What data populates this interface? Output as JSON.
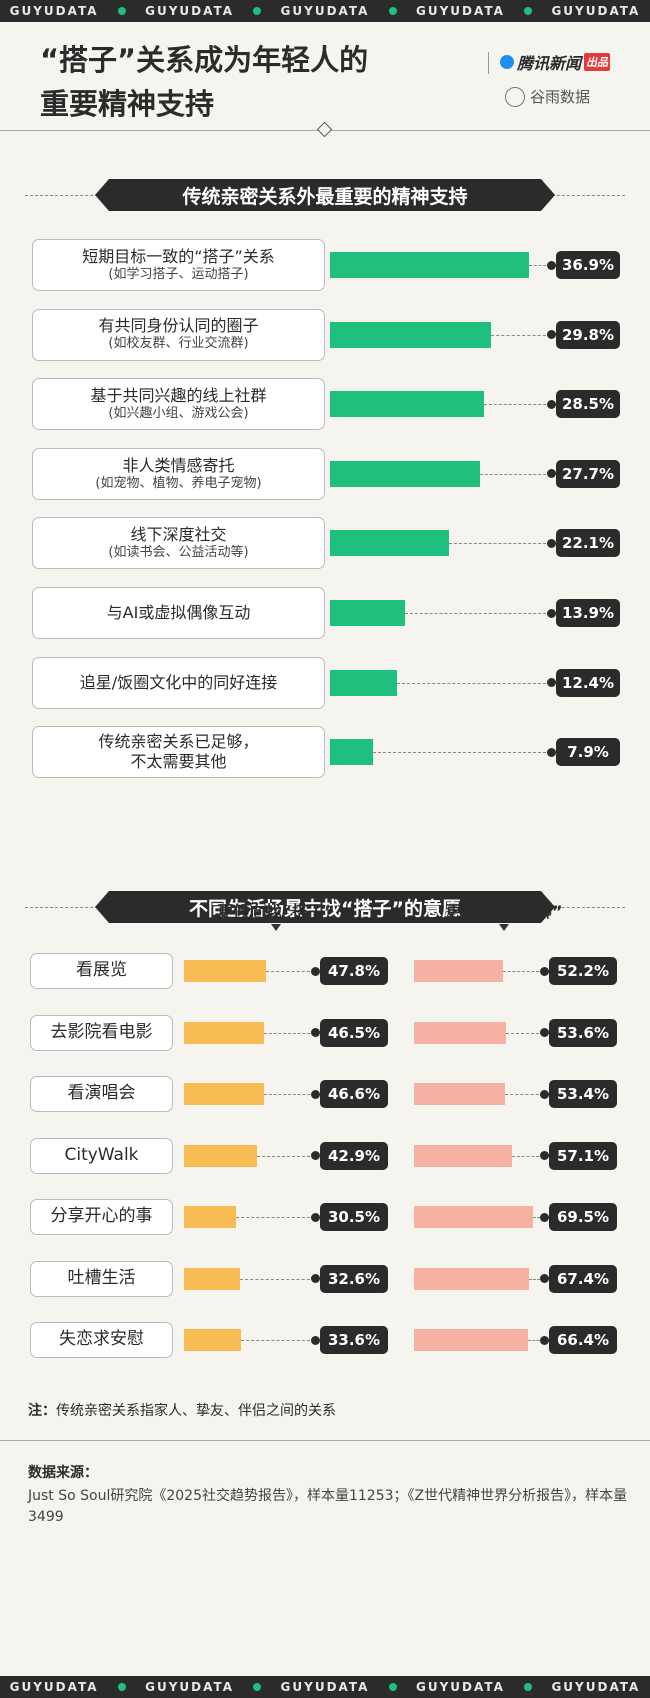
{
  "banner": "GUYUDATA",
  "header": {
    "title_lines": [
      "“搭子”关系成为年轻人的",
      "重要精神支持"
    ],
    "brand": "腾讯新闻",
    "brand_tag": "出品",
    "partner": "谷雨数据"
  },
  "chart_data": [
    {
      "type": "hbar",
      "title": "传统亲密关系外最重要的精神支持",
      "categories": [
        "短期目标一致的“搭子”关系",
        "有共同身份认同的圈子",
        "基于共同兴趣的线上社群",
        "非人类情感寄托",
        "线下深度社交",
        "与AI或虚拟偶像互动",
        "追星/饭圈文化中的同好连接",
        "传统亲密关系已足够，\n不太需要其他"
      ],
      "category_notes": [
        "(如学习搭子、运动搭子)",
        "(如校友群、行业交流群)",
        "(如兴趣小组、游戏公会)",
        "(如宠物、植物、养电子宠物)",
        "(如读书会、公益活动等)",
        null,
        null,
        null
      ],
      "values": [
        36.9,
        29.8,
        28.5,
        27.7,
        22.1,
        13.9,
        12.4,
        7.9
      ],
      "value_labels": [
        "36.9%",
        "29.8%",
        "28.5%",
        "27.7%",
        "22.1%",
        "13.9%",
        "12.4%",
        "7.9%"
      ],
      "color": "#1fc07d"
    },
    {
      "type": "split-bar",
      "title": "不同生活场景中找“搭子”的意愿",
      "categories": [
        "看展览",
        "去影院看电影",
        "看演唱会",
        "CityWalk",
        "分享开心的事",
        "吐槽生活",
        "失恋求安慰"
      ],
      "series": [
        {
          "name": "更倾向找“搭子”",
          "color": "#f6bb52",
          "values": [
            47.8,
            46.5,
            46.6,
            42.9,
            30.5,
            32.6,
            33.6
          ],
          "value_labels": [
            "47.8%",
            "46.5%",
            "46.6%",
            "42.9%",
            "30.5%",
            "32.6%",
            "33.6%"
          ]
        },
        {
          "name": "更倾向找“固聊”",
          "color": "#f5b2a3",
          "values": [
            52.2,
            53.6,
            53.4,
            57.1,
            69.5,
            67.4,
            66.4
          ],
          "value_labels": [
            "52.2%",
            "53.6%",
            "53.4%",
            "57.1%",
            "69.5%",
            "67.4%",
            "66.4%"
          ]
        }
      ]
    }
  ],
  "note": {
    "label": "注：",
    "text": "传统亲密关系指家人、挚友、伴侣之间的关系"
  },
  "source": {
    "label": "数据来源：",
    "text": "Just So Soul研究院《2025社交趋势报告》，样本量11253；《Z世代精神世界分析报告》，样本量3499"
  }
}
